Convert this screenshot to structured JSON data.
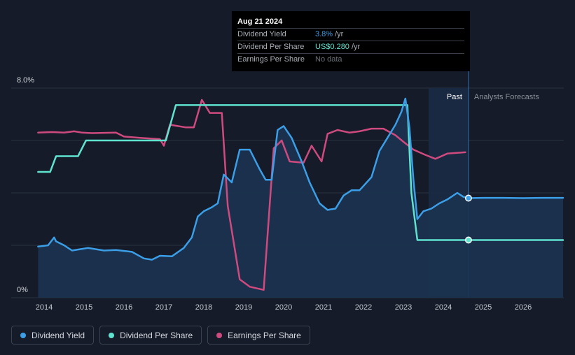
{
  "tooltip": {
    "date": "Aug 21 2024",
    "rows": [
      {
        "label": "Dividend Yield",
        "value": "3.8%",
        "unit": "/yr"
      },
      {
        "label": "Dividend Per Share",
        "value": "US$0.280",
        "unit": "/yr"
      },
      {
        "label": "Earnings Per Share",
        "value": "No data",
        "unit": ""
      }
    ]
  },
  "legend": {
    "items": [
      {
        "label": "Dividend Yield",
        "color": "#3b9ee6"
      },
      {
        "label": "Dividend Per Share",
        "color": "#5fe3cf"
      },
      {
        "label": "Earnings Per Share",
        "color": "#cf4a7f"
      }
    ]
  },
  "chart_data": {
    "type": "line",
    "y_label_top": "8.0%",
    "y_label_bottom": "0%",
    "ylim": [
      0,
      8
    ],
    "xlim": [
      2013.8,
      2027.0
    ],
    "x_ticks": [
      "2014",
      "2015",
      "2016",
      "2017",
      "2018",
      "2019",
      "2020",
      "2021",
      "2022",
      "2023",
      "2024",
      "2025",
      "2026"
    ],
    "past_label": "Past",
    "forecast_label": "Analysts Forecasts",
    "past_region_start": 2023.63,
    "forecast_start": 2024.63,
    "colors": {
      "yield": "#3b9ee6",
      "dps": "#5fe3cf",
      "eps": "#cf4a7f",
      "yield_fill": "#1b3350"
    },
    "series": [
      {
        "name": "Dividend Yield",
        "points": [
          [
            2013.85,
            1.95
          ],
          [
            2014.1,
            2.0
          ],
          [
            2014.25,
            2.3
          ],
          [
            2014.3,
            2.15
          ],
          [
            2014.5,
            2.0
          ],
          [
            2014.7,
            1.8
          ],
          [
            2014.9,
            1.85
          ],
          [
            2015.1,
            1.9
          ],
          [
            2015.5,
            1.8
          ],
          [
            2015.8,
            1.82
          ],
          [
            2016.2,
            1.75
          ],
          [
            2016.5,
            1.5
          ],
          [
            2016.7,
            1.45
          ],
          [
            2016.9,
            1.6
          ],
          [
            2017.2,
            1.58
          ],
          [
            2017.5,
            1.9
          ],
          [
            2017.7,
            2.3
          ],
          [
            2017.85,
            3.1
          ],
          [
            2018.0,
            3.3
          ],
          [
            2018.2,
            3.45
          ],
          [
            2018.35,
            3.6
          ],
          [
            2018.5,
            4.7
          ],
          [
            2018.7,
            4.4
          ],
          [
            2018.9,
            5.65
          ],
          [
            2019.15,
            5.65
          ],
          [
            2019.4,
            4.9
          ],
          [
            2019.55,
            4.5
          ],
          [
            2019.7,
            4.5
          ],
          [
            2019.85,
            6.4
          ],
          [
            2020.0,
            6.55
          ],
          [
            2020.2,
            6.1
          ],
          [
            2020.45,
            5.2
          ],
          [
            2020.65,
            4.4
          ],
          [
            2020.9,
            3.6
          ],
          [
            2021.1,
            3.35
          ],
          [
            2021.3,
            3.4
          ],
          [
            2021.5,
            3.9
          ],
          [
            2021.7,
            4.1
          ],
          [
            2021.9,
            4.1
          ],
          [
            2022.2,
            4.6
          ],
          [
            2022.4,
            5.6
          ],
          [
            2022.6,
            6.1
          ],
          [
            2022.8,
            6.6
          ],
          [
            2022.95,
            7.1
          ],
          [
            2023.05,
            7.6
          ],
          [
            2023.15,
            6.5
          ],
          [
            2023.25,
            4.5
          ],
          [
            2023.35,
            3.0
          ],
          [
            2023.5,
            3.3
          ],
          [
            2023.7,
            3.4
          ],
          [
            2023.9,
            3.6
          ],
          [
            2024.1,
            3.75
          ],
          [
            2024.35,
            4.0
          ],
          [
            2024.5,
            3.85
          ],
          [
            2024.63,
            3.8
          ],
          [
            2025.0,
            3.81
          ],
          [
            2025.5,
            3.81
          ],
          [
            2026.0,
            3.8
          ],
          [
            2026.5,
            3.81
          ],
          [
            2027.0,
            3.81
          ]
        ]
      },
      {
        "name": "Dividend Per Share",
        "points": [
          [
            2013.85,
            4.8
          ],
          [
            2014.15,
            4.8
          ],
          [
            2014.3,
            5.4
          ],
          [
            2014.85,
            5.4
          ],
          [
            2015.05,
            6.0
          ],
          [
            2016.7,
            6.0
          ],
          [
            2017.05,
            6.0
          ],
          [
            2017.3,
            7.35
          ],
          [
            2023.1,
            7.35
          ],
          [
            2023.2,
            4.0
          ],
          [
            2023.35,
            2.2
          ],
          [
            2024.63,
            2.2
          ],
          [
            2025.0,
            2.2
          ],
          [
            2026.0,
            2.2
          ],
          [
            2027.0,
            2.2
          ]
        ]
      },
      {
        "name": "Earnings Per Share",
        "points": [
          [
            2013.85,
            6.3
          ],
          [
            2014.2,
            6.32
          ],
          [
            2014.5,
            6.3
          ],
          [
            2014.75,
            6.35
          ],
          [
            2014.95,
            6.3
          ],
          [
            2015.2,
            6.28
          ],
          [
            2015.8,
            6.3
          ],
          [
            2016.0,
            6.15
          ],
          [
            2016.4,
            6.1
          ],
          [
            2016.9,
            6.05
          ],
          [
            2017.0,
            5.8
          ],
          [
            2017.15,
            6.6
          ],
          [
            2017.55,
            6.5
          ],
          [
            2017.75,
            6.5
          ],
          [
            2017.95,
            7.55
          ],
          [
            2018.15,
            7.05
          ],
          [
            2018.45,
            7.05
          ],
          [
            2018.6,
            3.5
          ],
          [
            2018.9,
            0.7
          ],
          [
            2019.15,
            0.42
          ],
          [
            2019.5,
            0.3
          ],
          [
            2019.75,
            5.7
          ],
          [
            2019.95,
            6.0
          ],
          [
            2020.15,
            5.2
          ],
          [
            2020.5,
            5.15
          ],
          [
            2020.7,
            5.8
          ],
          [
            2020.95,
            5.2
          ],
          [
            2021.1,
            6.25
          ],
          [
            2021.35,
            6.4
          ],
          [
            2021.65,
            6.3
          ],
          [
            2021.9,
            6.35
          ],
          [
            2022.2,
            6.45
          ],
          [
            2022.5,
            6.45
          ],
          [
            2022.8,
            6.2
          ],
          [
            2023.0,
            5.95
          ],
          [
            2023.25,
            5.65
          ],
          [
            2023.55,
            5.45
          ],
          [
            2023.8,
            5.3
          ],
          [
            2024.1,
            5.5
          ],
          [
            2024.55,
            5.55
          ]
        ]
      }
    ],
    "markers": [
      {
        "series": "Dividend Yield",
        "x": 2024.63,
        "y": 3.8
      },
      {
        "series": "Dividend Per Share",
        "x": 2024.63,
        "y": 2.2
      }
    ]
  }
}
